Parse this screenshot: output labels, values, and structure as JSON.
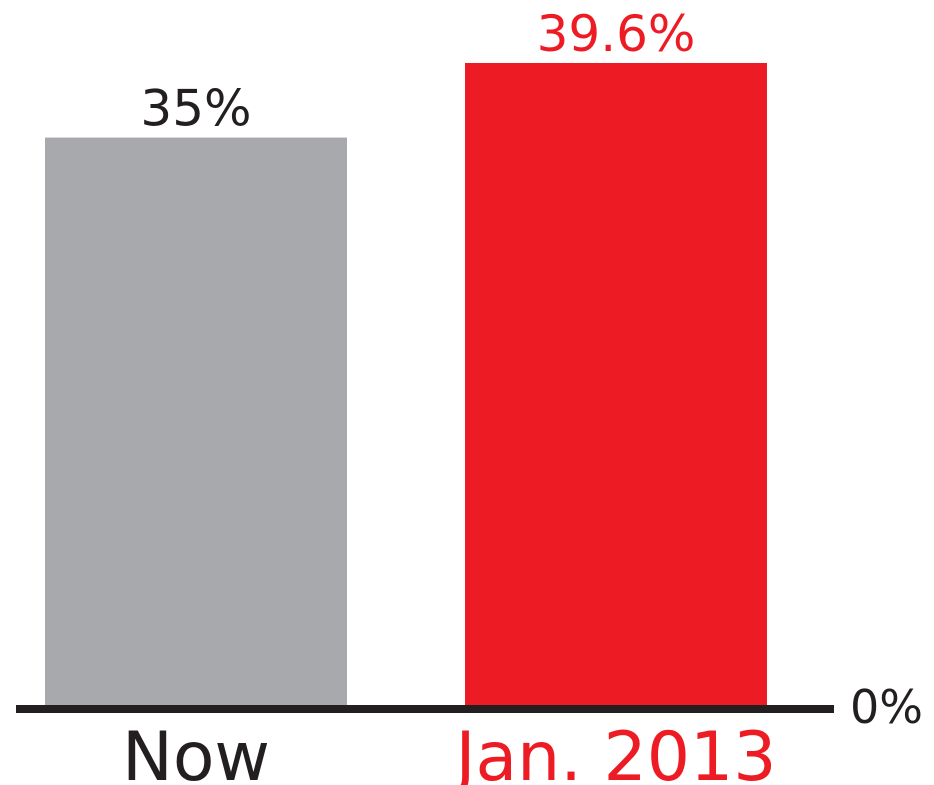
{
  "chart_data": {
    "type": "bar",
    "categories": [
      "Now",
      "Jan. 2013"
    ],
    "values": [
      35,
      39.6
    ],
    "value_labels": [
      "35%",
      "39.6%"
    ],
    "baseline_label": "0%",
    "title": "",
    "xlabel": "",
    "ylabel": "",
    "ylim": [
      0,
      39.6
    ],
    "grid": false,
    "colors": {
      "bars": [
        "#a7a9ac",
        "#ed1c24"
      ],
      "value_labels": [
        "#231f20",
        "#ed1c24"
      ],
      "category_labels": [
        "#231f20",
        "#ed1c24"
      ],
      "axis": "#231f20"
    }
  }
}
